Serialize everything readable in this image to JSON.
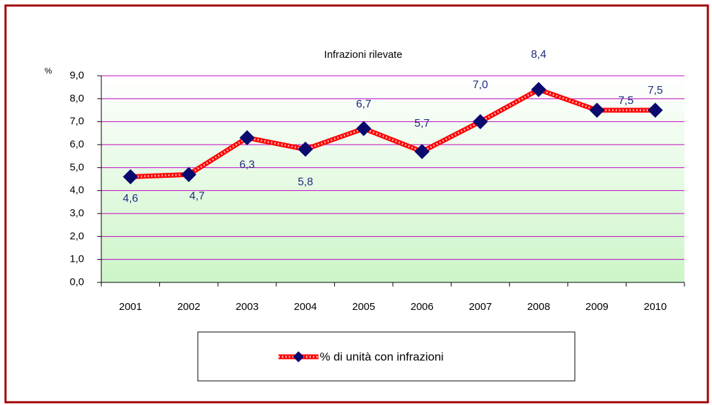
{
  "chart_data": {
    "type": "line",
    "title": "Infrazioni rilevate",
    "y_label": "%",
    "categories": [
      "2001",
      "2002",
      "2003",
      "2004",
      "2005",
      "2006",
      "2007",
      "2008",
      "2009",
      "2010"
    ],
    "series": [
      {
        "name": "% di unità con infrazioni",
        "color": "#ff0000",
        "marker_color": "#0a0a6e",
        "values": [
          4.6,
          4.7,
          6.3,
          5.8,
          6.7,
          5.7,
          7.0,
          8.4,
          7.5,
          7.5
        ],
        "value_labels": [
          "4,6",
          "4,7",
          "6,3",
          "5,8",
          "6,7",
          "5,7",
          "7,0",
          "8,4",
          "7,5",
          "7,5"
        ]
      }
    ],
    "ylim": [
      0,
      9
    ],
    "yticks": [
      {
        "value": 0,
        "label": "0,0"
      },
      {
        "value": 1,
        "label": "1,0"
      },
      {
        "value": 2,
        "label": "2,0"
      },
      {
        "value": 3,
        "label": "3,0"
      },
      {
        "value": 4,
        "label": "4,0"
      },
      {
        "value": 5,
        "label": "5,0"
      },
      {
        "value": 6,
        "label": "6,0"
      },
      {
        "value": 7,
        "label": "7,0"
      },
      {
        "value": 8,
        "label": "8,0"
      },
      {
        "value": 9,
        "label": "9,0"
      }
    ],
    "grid": true,
    "grid_color": "#c000c0",
    "legend": "bottom"
  }
}
